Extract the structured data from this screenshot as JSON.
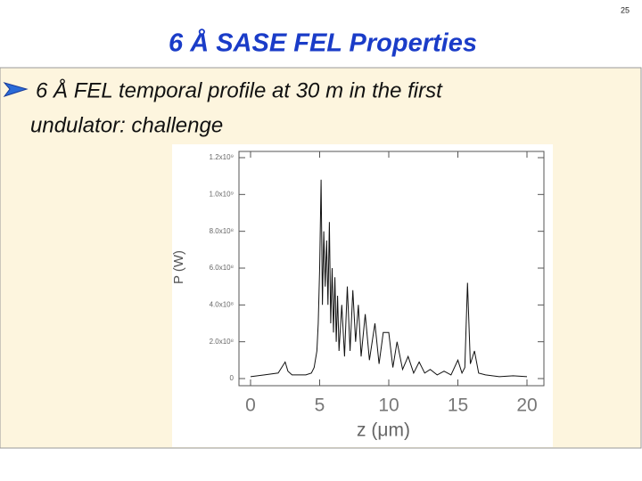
{
  "page_number": "25",
  "title": "6 Å SASE FEL Properties",
  "bullet": {
    "line1": "6 Å FEL temporal profile at 30 m in the first",
    "line2": "undulator: challenge"
  },
  "chart_data": {
    "type": "line",
    "x_label": "z (μm)",
    "y_label": "P (W)",
    "color": "#111111",
    "x": [
      0,
      1,
      2,
      2.5,
      2.7,
      3,
      4,
      4.4,
      4.6,
      4.8,
      4.9,
      5.0,
      5.1,
      5.2,
      5.3,
      5.4,
      5.5,
      5.6,
      5.7,
      5.8,
      5.9,
      6.0,
      6.1,
      6.2,
      6.3,
      6.4,
      6.6,
      6.8,
      7.0,
      7.2,
      7.4,
      7.6,
      7.8,
      8.0,
      8.3,
      8.6,
      9.0,
      9.3,
      9.6,
      10.0,
      10.3,
      10.6,
      11.0,
      11.4,
      11.8,
      12.2,
      12.6,
      13,
      13.5,
      14,
      14.5,
      15,
      15.3,
      15.5,
      15.7,
      15.9,
      16.2,
      16.5,
      17,
      18,
      19,
      20
    ],
    "values": [
      10000000.0,
      20000000.0,
      30000000.0,
      90000000.0,
      40000000.0,
      20000000.0,
      20000000.0,
      30000000.0,
      60000000.0,
      150000000.0,
      300000000.0,
      600000000.0,
      1080000000.0,
      400000000.0,
      800000000.0,
      500000000.0,
      750000000.0,
      400000000.0,
      850000000.0,
      300000000.0,
      600000000.0,
      250000000.0,
      550000000.0,
      200000000.0,
      450000000.0,
      150000000.0,
      400000000.0,
      120000000.0,
      500000000.0,
      150000000.0,
      480000000.0,
      200000000.0,
      400000000.0,
      120000000.0,
      350000000.0,
      100000000.0,
      300000000.0,
      80000000.0,
      250000000.0,
      250000000.0,
      60000000.0,
      200000000.0,
      50000000.0,
      120000000.0,
      30000000.0,
      90000000.0,
      30000000.0,
      50000000.0,
      20000000.0,
      40000000.0,
      20000000.0,
      100000000.0,
      30000000.0,
      60000000.0,
      520000000.0,
      80000000.0,
      150000000.0,
      30000000.0,
      20000000.0,
      10000000.0,
      15000000.0,
      10000000.0
    ],
    "xlim": [
      0,
      20
    ],
    "xticks": [
      0,
      5,
      10,
      15,
      20
    ],
    "ylim": [
      0,
      1200000000.0
    ],
    "yticks": [
      0,
      {
        "value": 200000000.0,
        "label": "2.0x10⁸"
      },
      {
        "value": 400000000.0,
        "label": "4.0x10⁸"
      },
      {
        "value": 600000000.0,
        "label": "6.0x10⁸"
      },
      {
        "value": 800000000.0,
        "label": "8.0x10⁸"
      },
      {
        "value": 1000000000.0,
        "label": "1.0x10⁹"
      },
      {
        "value": 1200000000.0,
        "label": "1.2x10⁹"
      }
    ]
  }
}
